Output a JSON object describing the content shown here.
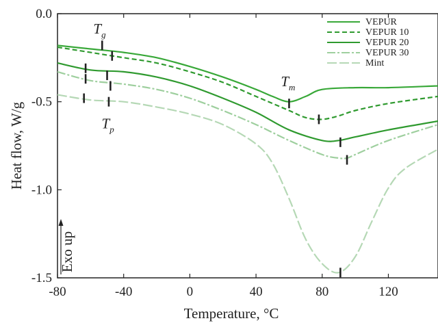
{
  "chart_data": {
    "type": "line",
    "title": "",
    "xlabel": "Temperature, °C",
    "ylabel": "Heat flow, W/g",
    "xlim": [
      -80,
      150
    ],
    "ylim": [
      -1.5,
      0.0
    ],
    "xticks": [
      "-80",
      "-40",
      "0",
      "40",
      "80",
      "120"
    ],
    "xtick_values": [
      -80,
      -40,
      0,
      40,
      80,
      120
    ],
    "yticks": [
      "0.0",
      "-0.5",
      "-1.0",
      "-1.5"
    ],
    "ytick_values": [
      0.0,
      -0.5,
      -1.0,
      -1.5
    ],
    "grid": false,
    "legend_position": "top-right",
    "annotations": {
      "exo": "Exo up",
      "tg": {
        "main": "T",
        "sub": "g",
        "x": -55,
        "y": -0.12
      },
      "tm": {
        "main": "T",
        "sub": "m",
        "x": 55,
        "y": -0.42
      },
      "tp": {
        "main": "T",
        "sub": "p",
        "x": -50,
        "y": -0.58
      }
    },
    "series": [
      {
        "name": "VEPUR",
        "color": "#38a838",
        "dash": "",
        "x": [
          -80,
          -60,
          -40,
          -20,
          0,
          20,
          40,
          50,
          60,
          70,
          80,
          100,
          120,
          150
        ],
        "y": [
          -0.18,
          -0.2,
          -0.22,
          -0.25,
          -0.3,
          -0.36,
          -0.43,
          -0.47,
          -0.5,
          -0.47,
          -0.43,
          -0.42,
          -0.42,
          -0.41
        ],
        "markers": [
          [
            -53,
            -0.18
          ],
          [
            60,
            -0.51
          ]
        ]
      },
      {
        "name": "VEPUR 10",
        "color": "#2f9a2f",
        "dash": "7,4",
        "x": [
          -80,
          -60,
          -40,
          -20,
          0,
          20,
          40,
          60,
          70,
          80,
          90,
          100,
          120,
          150
        ],
        "y": [
          -0.19,
          -0.22,
          -0.25,
          -0.28,
          -0.33,
          -0.39,
          -0.47,
          -0.55,
          -0.59,
          -0.6,
          -0.58,
          -0.55,
          -0.51,
          -0.47
        ],
        "markers": [
          [
            -47,
            -0.24
          ],
          [
            78,
            -0.6
          ]
        ]
      },
      {
        "name": "VEPUR 20",
        "color": "#2f9a2f",
        "dash": "",
        "x": [
          -80,
          -60,
          -40,
          -20,
          0,
          20,
          40,
          60,
          80,
          90,
          100,
          120,
          150
        ],
        "y": [
          -0.28,
          -0.32,
          -0.33,
          -0.36,
          -0.41,
          -0.48,
          -0.56,
          -0.66,
          -0.72,
          -0.72,
          -0.7,
          -0.66,
          -0.61
        ],
        "markers": [
          [
            -63,
            -0.31
          ],
          [
            -50,
            -0.35
          ],
          [
            91,
            -0.73
          ]
        ]
      },
      {
        "name": "VEPUR 30",
        "color": "#9ecf9e",
        "dash": "12,3,3,3",
        "x": [
          -80,
          -60,
          -40,
          -20,
          0,
          20,
          40,
          60,
          80,
          90,
          95,
          100,
          120,
          150
        ],
        "y": [
          -0.33,
          -0.38,
          -0.4,
          -0.43,
          -0.48,
          -0.55,
          -0.63,
          -0.72,
          -0.8,
          -0.82,
          -0.82,
          -0.8,
          -0.72,
          -0.63
        ],
        "markers": [
          [
            -63,
            -0.37
          ],
          [
            -48,
            -0.41
          ],
          [
            95,
            -0.83
          ]
        ]
      },
      {
        "name": "Mint",
        "color": "#b5d8b5",
        "dash": "14,4",
        "x": [
          -80,
          -60,
          -40,
          -20,
          0,
          20,
          40,
          50,
          60,
          70,
          80,
          90,
          100,
          110,
          120,
          130,
          150
        ],
        "y": [
          -0.46,
          -0.49,
          -0.5,
          -0.53,
          -0.57,
          -0.63,
          -0.74,
          -0.85,
          -1.05,
          -1.28,
          -1.42,
          -1.47,
          -1.38,
          -1.18,
          -0.99,
          -0.88,
          -0.77
        ],
        "markers": [
          [
            -64,
            -0.48
          ],
          [
            -49,
            -0.5
          ],
          [
            91,
            -1.47
          ]
        ]
      }
    ]
  }
}
